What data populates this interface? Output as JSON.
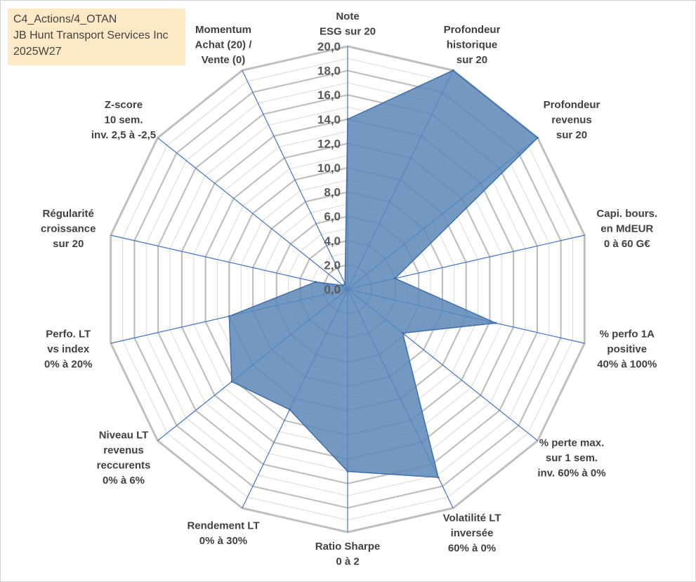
{
  "header": {
    "line1": "C4_Actions/4_OTAN",
    "line2": "JB Hunt Transport Services Inc",
    "line3": "2025W27"
  },
  "colors": {
    "fill": "#5b87b8",
    "stroke": "#3f6fa8",
    "spoke": "#4472c4",
    "grid_major": "#bfbfbf",
    "grid_minor": "#d9d9d9",
    "label": "#404040",
    "tick": "#595959",
    "title_bg": "#fde8c2"
  },
  "chart_data": {
    "type": "radar",
    "axis_range": [
      0,
      20
    ],
    "major_step": 2,
    "tick_labels": [
      "0,0",
      "2,0",
      "4,0",
      "6,0",
      "8,0",
      "10,0",
      "12,0",
      "14,0",
      "16,0",
      "18,0",
      "20,0"
    ],
    "categories": [
      [
        "Note",
        "ESG sur 20"
      ],
      [
        "Profondeur",
        "historique",
        "sur 20"
      ],
      [
        "Profondeur",
        "revenus",
        "sur 20"
      ],
      [
        "Capi. bours.",
        "en MdEUR",
        "0 à 60 G€"
      ],
      [
        "% perfo 1A",
        "positive",
        "40% à 100%"
      ],
      [
        "% perte max.",
        "sur 1 sem.",
        "inv. 60% à 0%"
      ],
      [
        "Volatilité LT",
        "inversée",
        "60% à 0%"
      ],
      [
        "Ratio Sharpe",
        "0 à 2"
      ],
      [
        "Rendement LT",
        "0% à 30%"
      ],
      [
        "Niveau LT",
        "revenus",
        "reccurents",
        "0% à 6%"
      ],
      [
        "Perfo. LT",
        "vs index",
        "0% à 20%"
      ],
      [
        "Régularité",
        "croissance",
        "sur 20"
      ],
      [
        "Z-score",
        "10 sem.",
        "inv. 2,5 à -2,5"
      ],
      [
        "Momentum",
        "Achat (20) /",
        "Vente (0)"
      ]
    ],
    "values": [
      14.0,
      20.0,
      20.0,
      4.0,
      12.5,
      5.8,
      17.2,
      15.0,
      11.0,
      12.2,
      10.0,
      2.7,
      0.5,
      0.5
    ]
  }
}
